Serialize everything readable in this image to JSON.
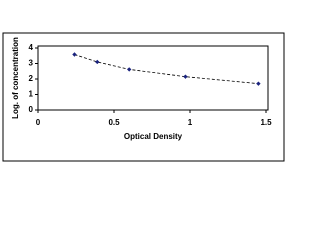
{
  "chart_data": {
    "type": "line",
    "x_label": "Optical Density",
    "y_label": "Log. of concentration",
    "x": [
      0.24,
      0.39,
      0.6,
      0.97,
      1.45
    ],
    "series": [
      {
        "color": "#1a237e",
        "values": [
          3.58,
          3.1,
          2.62,
          2.15,
          1.7
        ]
      }
    ],
    "xlim": [
      0,
      1.5
    ],
    "xticks": [
      0,
      0.5,
      1,
      1.5
    ],
    "ylim": [
      0,
      4
    ],
    "yticks": [
      0,
      1,
      2,
      3,
      4
    ]
  }
}
